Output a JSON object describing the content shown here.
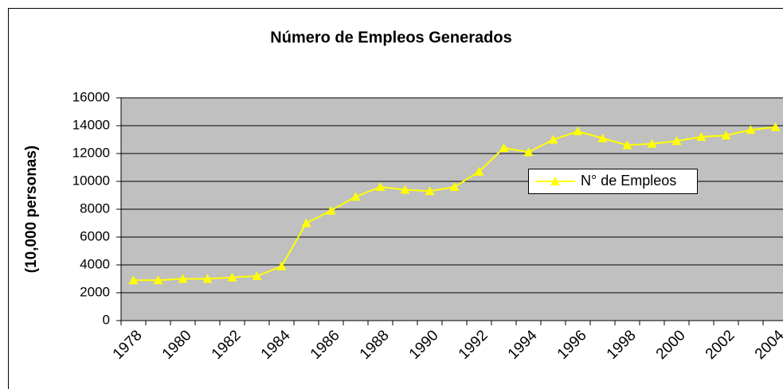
{
  "chart_data": {
    "type": "line",
    "title": "Número de Empleos Generados",
    "y_label": "(10,000 personas)",
    "categories": [
      "1978",
      null,
      "1980",
      null,
      "1982",
      null,
      "1984",
      null,
      "1986",
      null,
      "1988",
      null,
      "1990",
      null,
      "1992",
      null,
      "1994",
      null,
      "1996",
      null,
      "1998",
      null,
      "2000",
      null,
      "2002",
      null,
      "2004"
    ],
    "series": [
      {
        "name": "N° de Empleos",
        "color": "#ffff00",
        "values": [
          2900,
          2900,
          3000,
          3000,
          3100,
          3200,
          3900,
          7000,
          7900,
          8900,
          9600,
          9400,
          9300,
          9600,
          10700,
          12400,
          12100,
          13000,
          13600,
          13100,
          12600,
          12700,
          12900,
          13200,
          13300,
          13700,
          13900
        ]
      }
    ],
    "ylim": [
      0,
      16000
    ],
    "yticks": [
      0,
      2000,
      4000,
      6000,
      8000,
      10000,
      12000,
      14000,
      16000
    ],
    "grid": true,
    "plot_background": "#c0c0c0"
  }
}
